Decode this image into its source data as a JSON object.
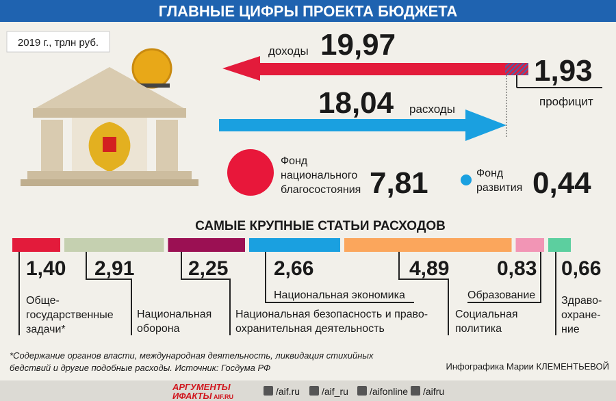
{
  "header": {
    "title": "ГЛАВНЫЕ ЦИФРЫ ПРОЕКТА БЮДЖЕТА"
  },
  "unit_note": "2019 г., трлн руб.",
  "revenue": {
    "label": "доходы",
    "value": "19,97"
  },
  "spending": {
    "label": "расходы",
    "value": "18,04"
  },
  "surplus": {
    "value": "1,93",
    "label": "профицит"
  },
  "funds": [
    {
      "label_lines": [
        "Фонд",
        "национального",
        "благосостояния"
      ],
      "value": "7,81"
    },
    {
      "label_lines": [
        "Фонд",
        "развития"
      ],
      "value": "0,44"
    }
  ],
  "expenses": {
    "title": "САМЫЕ КРУПНЫЕ СТАТЬИ РАСХОДОВ",
    "items": [
      {
        "value": 1.4,
        "value_label": "1,40",
        "label_lines": [
          "Обще-",
          "государственные",
          "задачи*"
        ],
        "color": "#e31b3b"
      },
      {
        "value": 2.91,
        "value_label": "2,91",
        "label_lines": [
          "Национальная",
          "оборона"
        ],
        "color": "#c5d0b0"
      },
      {
        "value": 2.25,
        "value_label": "2,25",
        "label_lines": [
          "Национальная безопасность и право-",
          "охранительная деятельность"
        ],
        "color": "#9b1053"
      },
      {
        "value": 2.66,
        "value_label": "2,66",
        "label_lines": [
          "Национальная экономика"
        ],
        "color": "#1aa0e0"
      },
      {
        "value": 4.89,
        "value_label": "4,89",
        "label_lines": [
          "Социальная",
          "политика"
        ],
        "color": "#fba65c"
      },
      {
        "value": 0.83,
        "value_label": "0,83",
        "label_lines": [
          "Образование"
        ],
        "color": "#f295b5"
      },
      {
        "value": 0.66,
        "value_label": "0,66",
        "label_lines": [
          "Здраво-",
          "охране-",
          "ние"
        ],
        "color": "#5ccf9f"
      }
    ]
  },
  "footnote": [
    "*Содержание органов власти, международная деятельность, ликвидация стихийных",
    "бедствий и другие подобные расходы. Источник: Госдума РФ"
  ],
  "credit": "Инфографика Марии КЛЕМЕНТЬЕВОЙ",
  "footer": {
    "logo": [
      "АРГУМЕНТЫ",
      "ИФАКТЫ",
      "AIF.RU"
    ],
    "social": [
      "/aif.ru",
      "/aif_ru",
      "/aifonline",
      "/aifru"
    ]
  }
}
